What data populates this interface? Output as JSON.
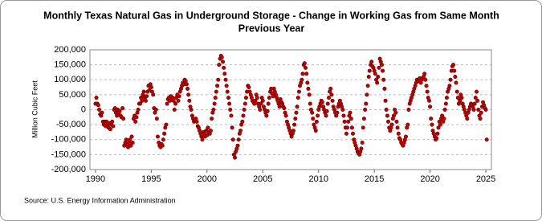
{
  "chart_data": {
    "type": "scatter",
    "title": [
      "Monthly Texas Natural Gas in Underground Storage - Change in Working Gas from Same Month",
      "Previous Year"
    ],
    "ylabel": "Million Cubic Feet",
    "source": "Source: U.S. Energy Information Administration",
    "color": "#c00000",
    "edge_color": "#5a0000",
    "grid": true,
    "xlim": [
      1989.5,
      2025.5
    ],
    "ylim": [
      -200000,
      200000
    ],
    "xticks": [
      1990,
      1995,
      2000,
      2005,
      2010,
      2015,
      2020,
      2025
    ],
    "yticks": [
      {
        "value": -200000,
        "label": "-200,000"
      },
      {
        "value": -150000,
        "label": "-150,000"
      },
      {
        "value": -100000,
        "label": "-100,000"
      },
      {
        "value": -50000,
        "label": "-50,000"
      },
      0,
      {
        "value": 50000,
        "label": "50,000"
      },
      {
        "value": 100000,
        "label": "100,000"
      },
      {
        "value": 150000,
        "label": "150,000"
      },
      {
        "value": 200000,
        "label": "200,000"
      }
    ],
    "x": [
      1990,
      1990.08,
      1990.17,
      1990.25,
      1990.33,
      1990.42,
      1990.5,
      1990.58,
      1990.67,
      1990.75,
      1990.83,
      1990.92,
      1991,
      1991.08,
      1991.17,
      1991.25,
      1991.33,
      1991.42,
      1991.5,
      1991.58,
      1991.67,
      1991.75,
      1991.83,
      1991.92,
      1992,
      1992.08,
      1992.17,
      1992.25,
      1992.33,
      1992.42,
      1992.5,
      1992.58,
      1992.67,
      1992.75,
      1992.83,
      1992.92,
      1993,
      1993.08,
      1993.17,
      1993.25,
      1993.33,
      1993.42,
      1993.5,
      1993.58,
      1993.67,
      1993.75,
      1993.83,
      1993.92,
      1994,
      1994.08,
      1994.17,
      1994.25,
      1994.33,
      1994.42,
      1994.5,
      1994.58,
      1994.67,
      1994.75,
      1994.83,
      1994.92,
      1995,
      1995.08,
      1995.17,
      1995.25,
      1995.33,
      1995.42,
      1995.5,
      1995.58,
      1995.67,
      1995.75,
      1995.83,
      1995.92,
      1996,
      1996.08,
      1996.17,
      1996.25,
      1996.33,
      1996.42,
      1996.5,
      1996.58,
      1996.67,
      1996.75,
      1996.83,
      1996.92,
      1997,
      1997.08,
      1997.17,
      1997.25,
      1997.33,
      1997.42,
      1997.5,
      1997.58,
      1997.67,
      1997.75,
      1997.83,
      1997.92,
      1998,
      1998.08,
      1998.17,
      1998.25,
      1998.33,
      1998.42,
      1998.5,
      1998.58,
      1998.67,
      1998.75,
      1998.83,
      1998.92,
      1999,
      1999.08,
      1999.17,
      1999.25,
      1999.33,
      1999.42,
      1999.5,
      1999.58,
      1999.67,
      1999.75,
      1999.83,
      1999.92,
      2000,
      2000.08,
      2000.17,
      2000.25,
      2000.33,
      2000.42,
      2000.5,
      2000.58,
      2000.67,
      2000.75,
      2000.83,
      2000.92,
      2001,
      2001.08,
      2001.17,
      2001.25,
      2001.33,
      2001.42,
      2001.5,
      2001.58,
      2001.67,
      2001.75,
      2001.83,
      2001.92,
      2002,
      2002.08,
      2002.17,
      2002.25,
      2002.33,
      2002.42,
      2002.5,
      2002.58,
      2002.67,
      2002.75,
      2002.83,
      2002.92,
      2003,
      2003.08,
      2003.17,
      2003.25,
      2003.33,
      2003.42,
      2003.5,
      2003.58,
      2003.67,
      2003.75,
      2003.83,
      2003.92,
      2004,
      2004.08,
      2004.17,
      2004.25,
      2004.33,
      2004.42,
      2004.5,
      2004.58,
      2004.67,
      2004.75,
      2004.83,
      2004.92,
      2005,
      2005.08,
      2005.17,
      2005.25,
      2005.33,
      2005.42,
      2005.5,
      2005.58,
      2005.67,
      2005.75,
      2005.83,
      2005.92,
      2006,
      2006.08,
      2006.17,
      2006.25,
      2006.33,
      2006.42,
      2006.5,
      2006.58,
      2006.67,
      2006.75,
      2006.83,
      2006.92,
      2007,
      2007.08,
      2007.17,
      2007.25,
      2007.33,
      2007.42,
      2007.5,
      2007.58,
      2007.67,
      2007.75,
      2007.83,
      2007.92,
      2008,
      2008.08,
      2008.17,
      2008.25,
      2008.33,
      2008.42,
      2008.5,
      2008.58,
      2008.67,
      2008.75,
      2008.83,
      2008.92,
      2009,
      2009.08,
      2009.17,
      2009.25,
      2009.33,
      2009.42,
      2009.5,
      2009.58,
      2009.67,
      2009.75,
      2009.83,
      2009.92,
      2010,
      2010.08,
      2010.17,
      2010.25,
      2010.33,
      2010.42,
      2010.5,
      2010.58,
      2010.67,
      2010.75,
      2010.83,
      2010.92,
      2011,
      2011.08,
      2011.17,
      2011.25,
      2011.33,
      2011.42,
      2011.5,
      2011.58,
      2011.67,
      2011.75,
      2011.83,
      2011.92,
      2012,
      2012.08,
      2012.17,
      2012.25,
      2012.33,
      2012.42,
      2012.5,
      2012.58,
      2012.67,
      2012.75,
      2012.83,
      2012.92,
      2013,
      2013.08,
      2013.17,
      2013.25,
      2013.33,
      2013.42,
      2013.5,
      2013.58,
      2013.67,
      2013.75,
      2013.83,
      2013.92,
      2014,
      2014.08,
      2014.17,
      2014.25,
      2014.33,
      2014.42,
      2014.5,
      2014.58,
      2014.67,
      2014.75,
      2014.83,
      2014.92,
      2015,
      2015.08,
      2015.17,
      2015.25,
      2015.33,
      2015.42,
      2015.5,
      2015.58,
      2015.67,
      2015.75,
      2015.83,
      2015.92,
      2016,
      2016.08,
      2016.17,
      2016.25,
      2016.33,
      2016.42,
      2016.5,
      2016.58,
      2016.67,
      2016.75,
      2016.83,
      2016.92,
      2017,
      2017.08,
      2017.17,
      2017.25,
      2017.33,
      2017.42,
      2017.5,
      2017.58,
      2017.67,
      2017.75,
      2017.83,
      2017.92,
      2018,
      2018.08,
      2018.17,
      2018.25,
      2018.33,
      2018.42,
      2018.5,
      2018.58,
      2018.67,
      2018.75,
      2018.83,
      2018.92,
      2019,
      2019.08,
      2019.17,
      2019.25,
      2019.33,
      2019.42,
      2019.5,
      2019.58,
      2019.67,
      2019.75,
      2019.83,
      2019.92,
      2020,
      2020.08,
      2020.17,
      2020.25,
      2020.33,
      2020.42,
      2020.5,
      2020.58,
      2020.67,
      2020.75,
      2020.83,
      2020.92,
      2021,
      2021.08,
      2021.17,
      2021.25,
      2021.33,
      2021.42,
      2021.5,
      2021.58,
      2021.67,
      2021.75,
      2021.83,
      2021.92,
      2022,
      2022.08,
      2022.17,
      2022.25,
      2022.33,
      2022.42,
      2022.5,
      2022.58,
      2022.67,
      2022.75,
      2022.83,
      2022.92,
      2023,
      2023.08,
      2023.17,
      2023.25,
      2023.33,
      2023.42,
      2023.5,
      2023.58,
      2023.67,
      2023.75,
      2023.83,
      2023.92,
      2024,
      2024.08,
      2024.17,
      2024.25,
      2024.33,
      2024.42,
      2024.5,
      2024.58,
      2024.67,
      2024.75,
      2024.83,
      2024.92,
      2025,
      2025.08
    ],
    "values": [
      20000,
      40000,
      20000,
      15000,
      0,
      -15000,
      -20000,
      -10000,
      -40000,
      -50000,
      -40000,
      -55000,
      -40000,
      -50000,
      -60000,
      -45000,
      -65000,
      -50000,
      -40000,
      -55000,
      0,
      5000,
      -10000,
      -20000,
      0,
      -10000,
      -5000,
      -20000,
      -25000,
      5000,
      -30000,
      -120000,
      -110000,
      -100000,
      -115000,
      -125000,
      -110000,
      -100000,
      -120000,
      -90000,
      -110000,
      -30000,
      -20000,
      -40000,
      -25000,
      -10000,
      0,
      20000,
      20000,
      40000,
      30000,
      50000,
      60000,
      40000,
      30000,
      45000,
      60000,
      80000,
      65000,
      85000,
      75000,
      60000,
      50000,
      5000,
      -10000,
      0,
      -30000,
      -90000,
      -110000,
      -120000,
      -125000,
      -115000,
      -120000,
      -100000,
      -80000,
      -60000,
      -50000,
      20000,
      35000,
      40000,
      30000,
      45000,
      35000,
      40000,
      30000,
      0,
      20000,
      40000,
      50000,
      30000,
      45000,
      60000,
      70000,
      80000,
      90000,
      85000,
      100000,
      95000,
      85000,
      70000,
      50000,
      30000,
      10000,
      0,
      -20000,
      -30000,
      -40000,
      -35000,
      -30000,
      -40000,
      -55000,
      -60000,
      -70000,
      -80000,
      -90000,
      -100000,
      -75000,
      -80000,
      -90000,
      -70000,
      -85000,
      -60000,
      -75000,
      -80000,
      -70000,
      -30000,
      -10000,
      0,
      20000,
      40000,
      60000,
      80000,
      100000,
      150000,
      170000,
      180000,
      175000,
      160000,
      140000,
      120000,
      100000,
      80000,
      60000,
      40000,
      20000,
      0,
      -20000,
      -60000,
      -100000,
      -150000,
      -160000,
      -140000,
      -130000,
      -120000,
      -100000,
      -80000,
      -70000,
      -50000,
      -40000,
      -20000,
      0,
      20000,
      40000,
      60000,
      80000,
      75000,
      60000,
      50000,
      40000,
      30000,
      25000,
      20000,
      30000,
      50000,
      40000,
      20000,
      10000,
      0,
      20000,
      40000,
      30000,
      10000,
      0,
      -10000,
      -20000,
      -5000,
      20000,
      40000,
      60000,
      70000,
      55000,
      45000,
      70000,
      60000,
      50000,
      40000,
      30000,
      20000,
      10000,
      35000,
      25000,
      20000,
      10000,
      5000,
      -10000,
      -20000,
      -40000,
      -50000,
      -60000,
      -70000,
      -80000,
      -90000,
      -80000,
      -70000,
      -50000,
      -30000,
      -10000,
      10000,
      40000,
      60000,
      80000,
      90000,
      100000,
      120000,
      150000,
      155000,
      140000,
      120000,
      90000,
      70000,
      50000,
      20000,
      0,
      -10000,
      -30000,
      -50000,
      -60000,
      -70000,
      -40000,
      -20000,
      0,
      10000,
      20000,
      30000,
      25000,
      10000,
      0,
      -10000,
      -20000,
      -5000,
      20000,
      40000,
      60000,
      70000,
      50000,
      30000,
      10000,
      0,
      -10000,
      -20000,
      -10000,
      10000,
      20000,
      30000,
      20000,
      10000,
      0,
      -20000,
      -40000,
      -60000,
      -80000,
      -60000,
      -40000,
      -20000,
      -10000,
      -30000,
      -60000,
      -80000,
      -100000,
      -110000,
      -120000,
      -130000,
      -140000,
      -145000,
      -150000,
      -140000,
      -130000,
      -110000,
      -60000,
      -30000,
      0,
      20000,
      50000,
      80000,
      110000,
      130000,
      150000,
      160000,
      145000,
      140000,
      130000,
      120000,
      100000,
      90000,
      110000,
      140000,
      170000,
      160000,
      150000,
      130000,
      100000,
      70000,
      30000,
      0,
      -20000,
      -40000,
      -60000,
      -70000,
      -60000,
      -50000,
      -30000,
      -20000,
      0,
      -10000,
      -40000,
      -60000,
      -80000,
      -95000,
      -100000,
      -110000,
      -115000,
      -120000,
      -110000,
      -100000,
      -90000,
      -60000,
      -50000,
      0,
      20000,
      30000,
      40000,
      50000,
      60000,
      70000,
      80000,
      90000,
      100000,
      95000,
      100000,
      105000,
      90000,
      100000,
      105000,
      110000,
      120000,
      100000,
      80000,
      60000,
      40000,
      30000,
      10000,
      -30000,
      -50000,
      -70000,
      -80000,
      -90000,
      -100000,
      -95000,
      -80000,
      -60000,
      -40000,
      -50000,
      -30000,
      -20000,
      -40000,
      -30000,
      0,
      20000,
      40000,
      60000,
      70000,
      80000,
      100000,
      130000,
      145000,
      150000,
      130000,
      110000,
      90000,
      60000,
      40000,
      20000,
      30000,
      50000,
      40000,
      20000,
      10000,
      0,
      -10000,
      -20000,
      -30000,
      -10000,
      0,
      10000,
      20000,
      15000,
      10000,
      0,
      20000,
      40000,
      60000,
      30000,
      0,
      -20000,
      -30000,
      -10000,
      10000,
      25000,
      15000,
      5000,
      0,
      -100000
    ]
  }
}
